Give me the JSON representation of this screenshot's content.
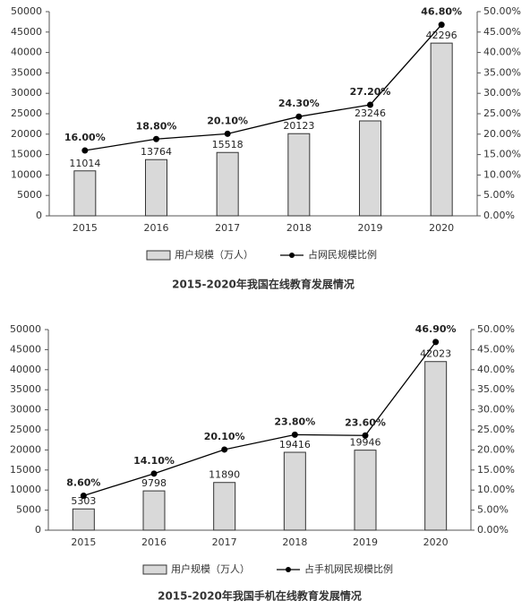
{
  "chart_data": [
    {
      "type": "bar-line",
      "title": "2015-2020年我国在线教育发展情况",
      "categories": [
        "2015",
        "2016",
        "2017",
        "2018",
        "2019",
        "2020"
      ],
      "series": [
        {
          "name": "用户规模（万人）",
          "type": "bar",
          "color": "#d9d9d9",
          "values": [
            11014,
            13764,
            15518,
            20123,
            23246,
            42296
          ]
        },
        {
          "name": "占网民规模比例",
          "type": "line",
          "axis": "y2",
          "color": "#000000",
          "values": [
            16,
            18.8,
            20.1,
            24.3,
            27.2,
            46.8
          ],
          "value_labels": [
            "16.00%",
            "18.80%",
            "20.10%",
            "24.30%",
            "27.20%",
            "46.80%"
          ]
        }
      ],
      "ylim": [
        0,
        50000
      ],
      "yticks": [
        0,
        5000,
        10000,
        15000,
        20000,
        25000,
        30000,
        35000,
        40000,
        45000,
        50000
      ],
      "y2lim": [
        0,
        50
      ],
      "y2ticks": [
        {
          "value": 0,
          "label": "0.00%"
        },
        {
          "value": 5,
          "label": "5.00%"
        },
        {
          "value": 10,
          "label": "10.00%"
        },
        {
          "value": 15,
          "label": "15.00%"
        },
        {
          "value": 20,
          "label": "20.00%"
        },
        {
          "value": 25,
          "label": "25.00%"
        },
        {
          "value": 30,
          "label": "30.00%"
        },
        {
          "value": 35,
          "label": "35.00%"
        },
        {
          "value": 40,
          "label": "40.00%"
        },
        {
          "value": 45,
          "label": "45.00%"
        },
        {
          "value": 50,
          "label": "50.00%"
        }
      ],
      "legend": "bottom"
    },
    {
      "type": "bar-line",
      "title": "2015-2020年我国手机在线教育发展情况",
      "categories": [
        "2015",
        "2016",
        "2017",
        "2018",
        "2019",
        "2020"
      ],
      "series": [
        {
          "name": "用户规模（万人）",
          "type": "bar",
          "color": "#d9d9d9",
          "values": [
            5303,
            9798,
            11890,
            19416,
            19946,
            42023
          ]
        },
        {
          "name": "占手机网民规模比例",
          "type": "line",
          "axis": "y2",
          "color": "#000000",
          "values": [
            8.6,
            14.1,
            20.1,
            23.8,
            23.6,
            46.9
          ],
          "value_labels": [
            "8.60%",
            "14.10%",
            "20.10%",
            "23.80%",
            "23.60%",
            "46.90%"
          ]
        }
      ],
      "ylim": [
        0,
        50000
      ],
      "yticks": [
        0,
        5000,
        10000,
        15000,
        20000,
        25000,
        30000,
        35000,
        40000,
        45000,
        50000
      ],
      "y2lim": [
        0,
        50
      ],
      "y2ticks": [
        {
          "value": 0,
          "label": "0.00%"
        },
        {
          "value": 5,
          "label": "5.00%"
        },
        {
          "value": 10,
          "label": "10.00%"
        },
        {
          "value": 15,
          "label": "15.00%"
        },
        {
          "value": 20,
          "label": "20.00%"
        },
        {
          "value": 25,
          "label": "25.00%"
        },
        {
          "value": 30,
          "label": "30.00%"
        },
        {
          "value": 35,
          "label": "35.00%"
        },
        {
          "value": 40,
          "label": "40.00%"
        },
        {
          "value": 45,
          "label": "45.00%"
        },
        {
          "value": 50,
          "label": "50.00%"
        }
      ],
      "legend": "bottom"
    }
  ]
}
